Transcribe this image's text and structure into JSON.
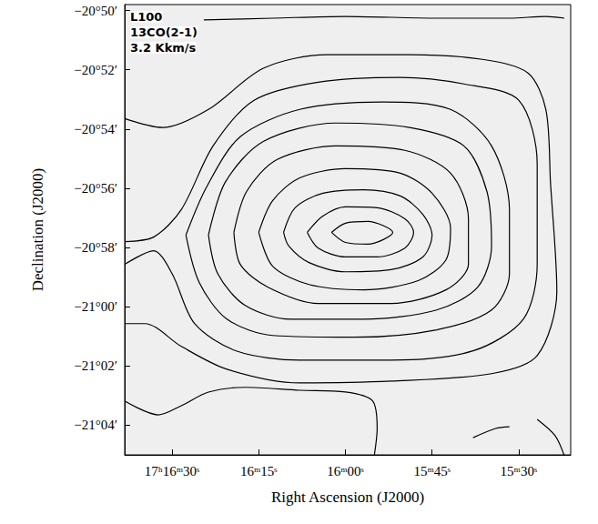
{
  "chart_data": {
    "type": "line",
    "annotations": [
      "L100",
      "13CO(2-1)",
      "3.2 Kkm/s"
    ],
    "x_label": "Right Ascension (J2000)",
    "y_label": "Declination (J2000)",
    "color": "#000000",
    "marker": "none",
    "line_style": "solid",
    "grid": false,
    "xlim": [
      98.2,
      21.0
    ],
    "xticks": [
      {
        "value": 90,
        "label": "17ʰ16ᵐ30ˢ"
      },
      {
        "value": 75,
        "label": "16ᵐ15ˢ"
      },
      {
        "value": 60,
        "label": "16ᵐ00ˢ"
      },
      {
        "value": 45,
        "label": "15ᵐ45ˢ"
      },
      {
        "value": 30,
        "label": "15ᵐ30ˢ"
      }
    ],
    "ylim": [
      -1265,
      -1249.8
    ],
    "yticks": [
      {
        "value": -1250,
        "label": "−20°50′"
      },
      {
        "value": -1252,
        "label": "−20°52′"
      },
      {
        "value": -1254,
        "label": "−20°54′"
      },
      {
        "value": -1256,
        "label": "−20°56′"
      },
      {
        "value": -1258,
        "label": "−20°58′"
      },
      {
        "value": -1260,
        "label": "−21°00′"
      },
      {
        "value": -1262,
        "label": "−21°02′"
      },
      {
        "value": -1264,
        "label": "−21°04′"
      }
    ],
    "series": [
      {
        "values": [
          [
            62.4,
            -1257.49
          ],
          [
            60.0,
            -1257.18
          ],
          [
            56.1,
            -1257.12
          ],
          [
            51.8,
            -1257.49
          ],
          [
            56.1,
            -1257.89
          ],
          [
            60.0,
            -1257.83
          ],
          [
            62.4,
            -1257.49
          ]
        ]
      },
      {
        "values": [
          [
            66.6,
            -1257.49
          ],
          [
            63.9,
            -1256.94
          ],
          [
            60.0,
            -1256.63
          ],
          [
            54.5,
            -1256.66
          ],
          [
            49.7,
            -1257.03
          ],
          [
            48.2,
            -1257.49
          ],
          [
            49.7,
            -1258.02
          ],
          [
            54.5,
            -1258.32
          ],
          [
            60.0,
            -1258.32
          ],
          [
            64.7,
            -1258.02
          ],
          [
            66.6,
            -1257.49
          ]
        ]
      },
      {
        "values": [
          [
            70.7,
            -1257.49
          ],
          [
            68.7,
            -1256.66
          ],
          [
            63.9,
            -1256.17
          ],
          [
            56.8,
            -1256.05
          ],
          [
            50.5,
            -1256.26
          ],
          [
            46.6,
            -1256.88
          ],
          [
            45.0,
            -1257.58
          ],
          [
            46.6,
            -1258.32
          ],
          [
            52.1,
            -1258.75
          ],
          [
            60.0,
            -1258.82
          ],
          [
            66.3,
            -1258.51
          ],
          [
            69.8,
            -1257.95
          ],
          [
            70.7,
            -1257.49
          ]
        ]
      },
      {
        "values": [
          [
            75.0,
            -1257.49
          ],
          [
            72.6,
            -1256.42
          ],
          [
            67.9,
            -1255.65
          ],
          [
            60.0,
            -1255.34
          ],
          [
            50.5,
            -1255.49
          ],
          [
            45.0,
            -1256.17
          ],
          [
            41.8,
            -1257.34
          ],
          [
            42.6,
            -1258.42
          ],
          [
            47.4,
            -1259.12
          ],
          [
            56.8,
            -1259.43
          ],
          [
            66.3,
            -1259.25
          ],
          [
            72.6,
            -1258.63
          ],
          [
            75.0,
            -1257.49
          ]
        ]
      },
      {
        "values": [
          [
            79.3,
            -1257.49
          ],
          [
            77.1,
            -1256.11
          ],
          [
            71.8,
            -1255.03
          ],
          [
            61.6,
            -1254.57
          ],
          [
            49.7,
            -1254.72
          ],
          [
            41.8,
            -1255.49
          ],
          [
            38.7,
            -1257.03
          ],
          [
            38.7,
            -1258.57
          ],
          [
            42.6,
            -1259.43
          ],
          [
            52.1,
            -1259.89
          ],
          [
            64.7,
            -1259.89
          ],
          [
            73.4,
            -1259.34
          ],
          [
            78.2,
            -1258.57
          ],
          [
            79.3,
            -1257.49
          ]
        ]
      },
      {
        "values": [
          [
            83.7,
            -1257.58
          ],
          [
            80.8,
            -1255.8
          ],
          [
            74.2,
            -1254.42
          ],
          [
            61.6,
            -1253.8
          ],
          [
            48.9,
            -1253.95
          ],
          [
            39.5,
            -1254.57
          ],
          [
            35.5,
            -1256.11
          ],
          [
            34.7,
            -1257.95
          ],
          [
            37.1,
            -1259.34
          ],
          [
            44.2,
            -1260.11
          ],
          [
            56.8,
            -1260.42
          ],
          [
            69.5,
            -1260.42
          ],
          [
            77.4,
            -1259.95
          ],
          [
            82.1,
            -1258.88
          ],
          [
            83.7,
            -1257.58
          ]
        ]
      },
      {
        "values": [
          [
            87.6,
            -1257.58
          ],
          [
            84.0,
            -1255.95
          ],
          [
            78.2,
            -1254.26
          ],
          [
            67.9,
            -1253.34
          ],
          [
            53.7,
            -1253.09
          ],
          [
            41.8,
            -1253.34
          ],
          [
            34.7,
            -1254.57
          ],
          [
            31.6,
            -1256.72
          ],
          [
            31.6,
            -1258.88
          ],
          [
            34.7,
            -1260.11
          ],
          [
            44.2,
            -1260.78
          ],
          [
            58.4,
            -1261.03
          ],
          [
            72.6,
            -1260.97
          ],
          [
            80.5,
            -1260.42
          ],
          [
            85.3,
            -1259.18
          ],
          [
            87.6,
            -1257.58
          ]
        ]
      },
      {
        "values": [
          [
            98.2,
            -1257.8
          ],
          [
            93.2,
            -1257.65
          ],
          [
            88.4,
            -1256.72
          ],
          [
            82.9,
            -1254.57
          ],
          [
            75.8,
            -1253.03
          ],
          [
            64.7,
            -1252.42
          ],
          [
            50.5,
            -1252.26
          ],
          [
            39.5,
            -1252.48
          ],
          [
            30.0,
            -1253.03
          ],
          [
            26.8,
            -1255.18
          ],
          [
            26.8,
            -1258.57
          ],
          [
            29.2,
            -1260.42
          ],
          [
            37.9,
            -1261.49
          ],
          [
            52.1,
            -1261.8
          ],
          [
            67.9,
            -1261.8
          ],
          [
            78.9,
            -1261.49
          ],
          [
            86.1,
            -1260.57
          ],
          [
            90.0,
            -1258.88
          ],
          [
            93.2,
            -1258.11
          ],
          [
            98.2,
            -1258.57
          ]
        ]
      },
      {
        "values": [
          [
            98.2,
            -1253.65
          ],
          [
            91.6,
            -1253.95
          ],
          [
            83.7,
            -1253.34
          ],
          [
            74.2,
            -1251.95
          ],
          [
            63.2,
            -1251.49
          ],
          [
            48.9,
            -1251.49
          ],
          [
            36.3,
            -1251.65
          ],
          [
            28.4,
            -1252.11
          ],
          [
            25.3,
            -1253.34
          ],
          [
            24.5,
            -1255.8
          ],
          [
            23.4,
            -1259.49
          ],
          [
            26.8,
            -1261.65
          ],
          [
            34.7,
            -1262.26
          ],
          [
            52.1,
            -1262.51
          ],
          [
            67.9,
            -1262.57
          ],
          [
            80.5,
            -1262.11
          ],
          [
            88.4,
            -1261.34
          ],
          [
            94.7,
            -1260.57
          ],
          [
            98.2,
            -1260.57
          ]
        ]
      },
      {
        "values": [
          [
            84.5,
            -1250.32
          ],
          [
            72.6,
            -1250.26
          ],
          [
            60.0,
            -1250.2
          ],
          [
            44.2,
            -1250.26
          ],
          [
            31.6,
            -1250.26
          ],
          [
            25.3,
            -1250.2
          ],
          [
            22.1,
            -1250.26
          ]
        ]
      },
      {
        "values": [
          [
            98.2,
            -1263.18
          ],
          [
            92.4,
            -1263.65
          ],
          [
            88.4,
            -1263.34
          ],
          [
            83.7,
            -1262.88
          ],
          [
            77.4,
            -1262.72
          ],
          [
            67.9,
            -1262.82
          ],
          [
            60.0,
            -1262.88
          ],
          [
            55.3,
            -1263.18
          ],
          [
            54.5,
            -1264.11
          ],
          [
            55.0,
            -1265.03
          ]
        ]
      },
      {
        "values": [
          [
            37.9,
            -1264.42
          ],
          [
            34.0,
            -1264.11
          ],
          [
            31.6,
            -1264.05
          ]
        ]
      },
      {
        "values": [
          [
            26.8,
            -1263.8
          ],
          [
            23.7,
            -1264.35
          ],
          [
            22.1,
            -1265.03
          ]
        ]
      }
    ]
  }
}
